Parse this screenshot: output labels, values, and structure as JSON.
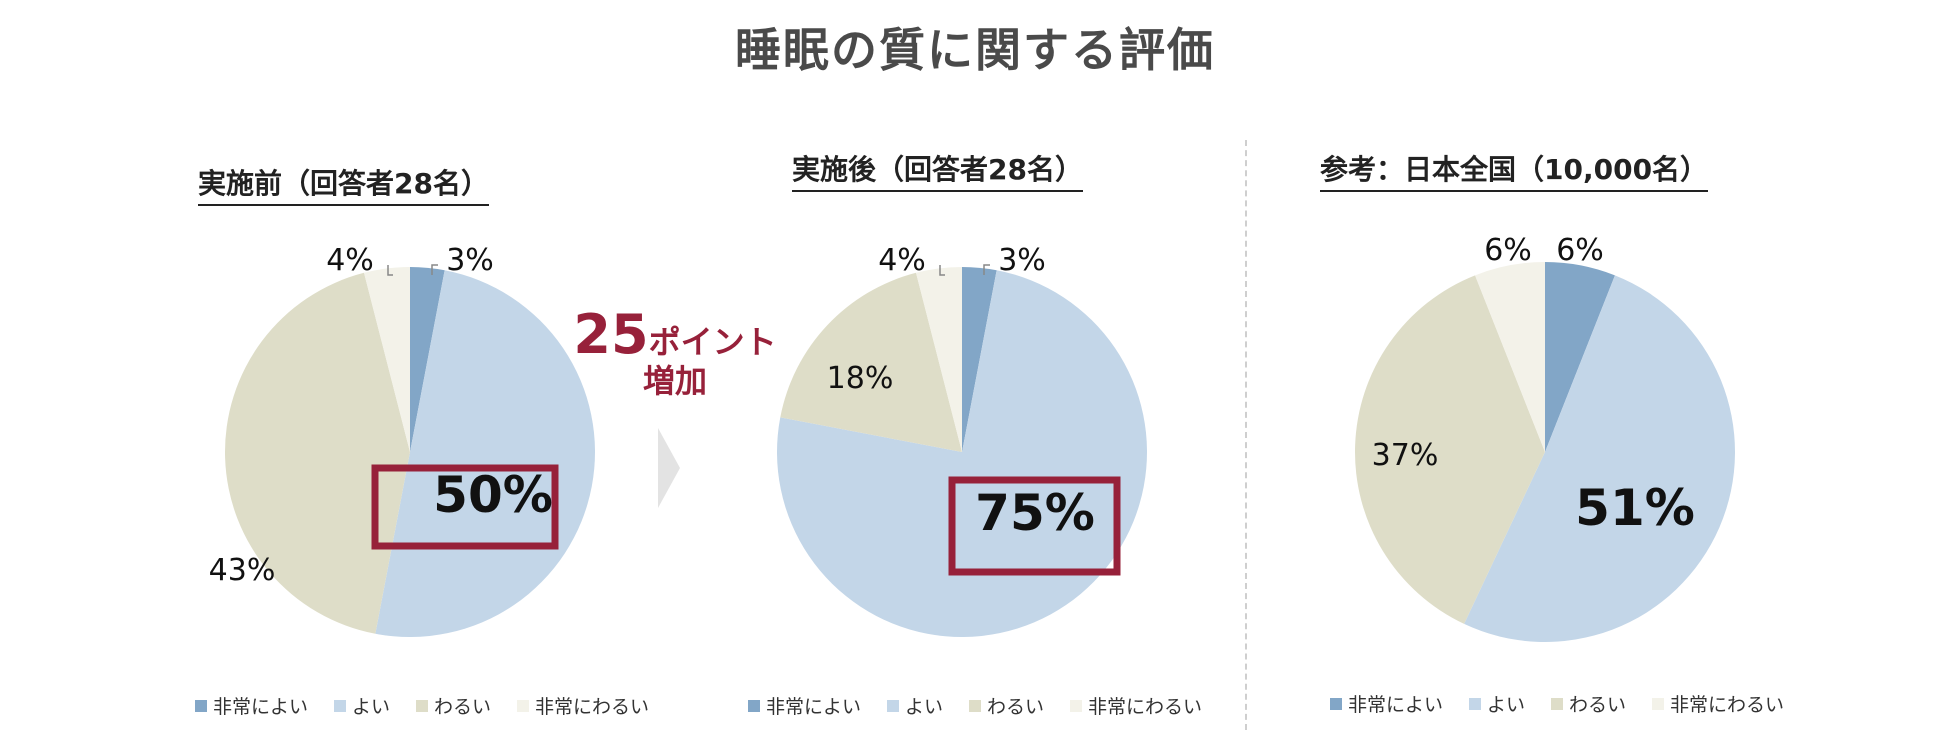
{
  "title": "睡眠の質に関する評価",
  "increase": {
    "points": "25",
    "unit": "ポイント",
    "text": "増加"
  },
  "legend": [
    "非常によい",
    "よい",
    "わるい",
    "非常にわるい"
  ],
  "colors": {
    "very_good": "#82a6c7",
    "good": "#c3d6e8",
    "bad": "#deddc8",
    "very_bad": "#f3f2e9",
    "highlight": "#97213a"
  },
  "chart_data": [
    {
      "type": "pie",
      "title": "実施前（回答者28名）",
      "categories": [
        "非常によい",
        "よい",
        "わるい",
        "非常にわるい"
      ],
      "values": [
        3,
        50,
        43,
        4
      ],
      "labels": [
        "3%",
        "50%",
        "43%",
        "4%"
      ],
      "highlight": "よい",
      "legend_position": "bottom"
    },
    {
      "type": "pie",
      "title": "実施後（回答者28名）",
      "categories": [
        "非常によい",
        "よい",
        "わるい",
        "非常にわるい"
      ],
      "values": [
        3,
        75,
        18,
        4
      ],
      "labels": [
        "3%",
        "75%",
        "18%",
        "4%"
      ],
      "highlight": "よい",
      "legend_position": "bottom"
    },
    {
      "type": "pie",
      "title": "参考：日本全国（10,000名）",
      "categories": [
        "非常によい",
        "よい",
        "わるい",
        "非常にわるい"
      ],
      "values": [
        6,
        51,
        37,
        6
      ],
      "labels": [
        "6%",
        "51%",
        "37%",
        "6%"
      ],
      "legend_position": "bottom"
    }
  ]
}
